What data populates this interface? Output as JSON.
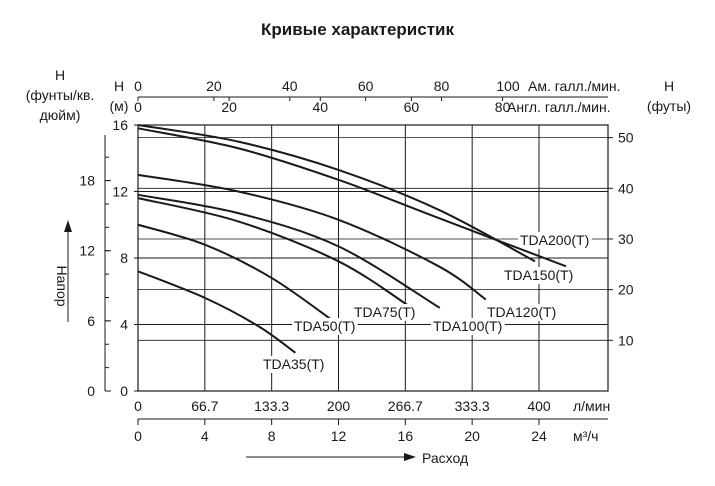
{
  "title": "Кривые характеристик",
  "chart_data": {
    "type": "line",
    "title": "Кривые характеристик",
    "xlabel": "Расход",
    "ylabel": "Напор",
    "x_units": [
      "л/мин",
      "м³/ч",
      "Ам. галл./мин.",
      "Англ. галл./мин."
    ],
    "y_units": [
      "H (м)",
      "H (фунты/кв. дюйм)",
      "H (футы)"
    ],
    "xlim_lpm": [
      0,
      466.7
    ],
    "ylim_m": [
      0,
      16
    ],
    "grid": true,
    "axes": {
      "bottom_lpm": {
        "unit": "л/мин",
        "ticks": [
          "0",
          "66.7",
          "133.3",
          "200",
          "266.7",
          "333.3",
          "400"
        ]
      },
      "bottom_m3h": {
        "unit": "м³/ч",
        "ticks": [
          "0",
          "4",
          "8",
          "12",
          "16",
          "20",
          "24"
        ]
      },
      "top_usgpm": {
        "unit": "Ам. галл./мин.",
        "ticks": [
          "0",
          "20",
          "40",
          "60",
          "80",
          "100"
        ]
      },
      "top_ukgpm": {
        "unit": "Англ. галл./мин.",
        "ticks": [
          "0",
          "20",
          "40",
          "60",
          "80"
        ]
      },
      "left_m": {
        "unit": "(м)",
        "label": "H",
        "ticks": [
          "0",
          "4",
          "8",
          "12",
          "16"
        ]
      },
      "left_psi": {
        "unit": "(фунты/кв. дюйм)",
        "label": "H",
        "ticks": [
          "0",
          "6",
          "12",
          "18"
        ]
      },
      "right_ft": {
        "unit": "(футы)",
        "label": "H",
        "ticks": [
          "10",
          "20",
          "30",
          "40",
          "50"
        ]
      }
    },
    "series": [
      {
        "name": "TDA200(T)",
        "x_lpm": [
          0,
          100,
          200,
          300,
          396
        ],
        "y_m": [
          16.0,
          15.0,
          13.3,
          10.9,
          7.8
        ]
      },
      {
        "name": "TDA150(T)",
        "x_lpm": [
          0,
          100,
          200,
          300,
          427
        ],
        "y_m": [
          15.8,
          14.6,
          12.7,
          10.4,
          7.5
        ]
      },
      {
        "name": "TDA120(T)",
        "x_lpm": [
          0,
          100,
          200,
          300,
          347
        ],
        "y_m": [
          13.0,
          12.0,
          10.3,
          7.5,
          5.5
        ]
      },
      {
        "name": "TDA100(T)",
        "x_lpm": [
          0,
          100,
          200,
          301
        ],
        "y_m": [
          11.8,
          10.7,
          8.7,
          5.0
        ]
      },
      {
        "name": "TDA75(T)",
        "x_lpm": [
          0,
          100,
          200,
          273
        ],
        "y_m": [
          11.6,
          10.2,
          7.8,
          5.0
        ]
      },
      {
        "name": "TDA50(T)",
        "x_lpm": [
          0,
          66.7,
          133.3,
          195
        ],
        "y_m": [
          10.0,
          8.8,
          6.8,
          4.2
        ]
      },
      {
        "name": "TDA35(T)",
        "x_lpm": [
          0,
          66.7,
          120,
          157
        ],
        "y_m": [
          7.2,
          5.6,
          3.9,
          2.3
        ]
      }
    ]
  },
  "labels": {
    "left_psi_h": "H",
    "left_psi_unit1": "(фунты/кв.",
    "left_psi_unit2": "дюйм)",
    "left_m_h": "H",
    "left_m_unit": "(м)",
    "right_h": "H",
    "right_unit": "(футы)",
    "top_us_unit": "Ам. галл./мин.",
    "top_us_100": "100",
    "top_uk_unit": "Англ. галл./мин.",
    "bottom_lpm_unit": "л/мин",
    "bottom_m3h_unit": "м³/ч",
    "flow_label": "Расход",
    "head_label": "Напор"
  }
}
